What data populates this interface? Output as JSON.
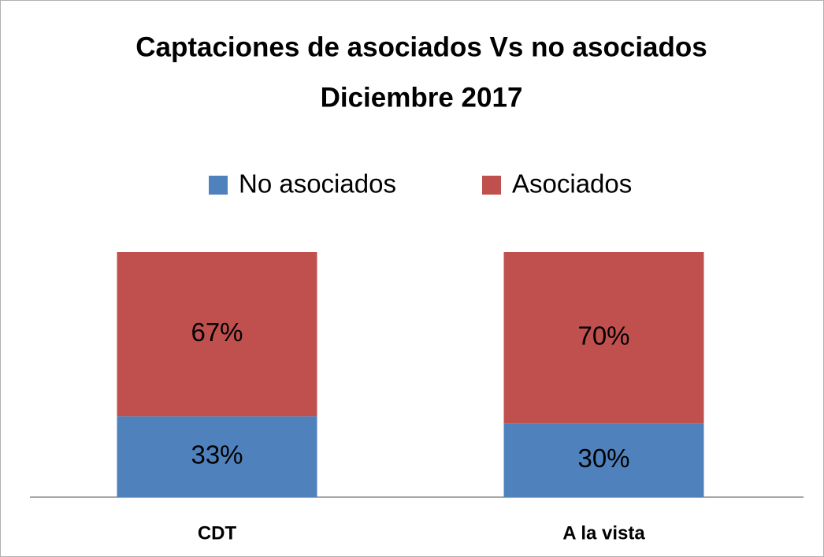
{
  "chart_data": {
    "type": "bar",
    "stacked": true,
    "title": "Captaciones de asociados Vs no asociados",
    "subtitle": "Diciembre 2017",
    "categories": [
      "CDT",
      "A la vista"
    ],
    "series": [
      {
        "name": "No asociados",
        "color": "#4f81bd",
        "values": [
          33,
          30
        ],
        "value_labels": [
          "33%",
          "30%"
        ]
      },
      {
        "name": "Asociados",
        "color": "#c0504d",
        "values": [
          67,
          70
        ],
        "value_labels": [
          "67%",
          "70%"
        ]
      }
    ],
    "legend": "top"
  }
}
